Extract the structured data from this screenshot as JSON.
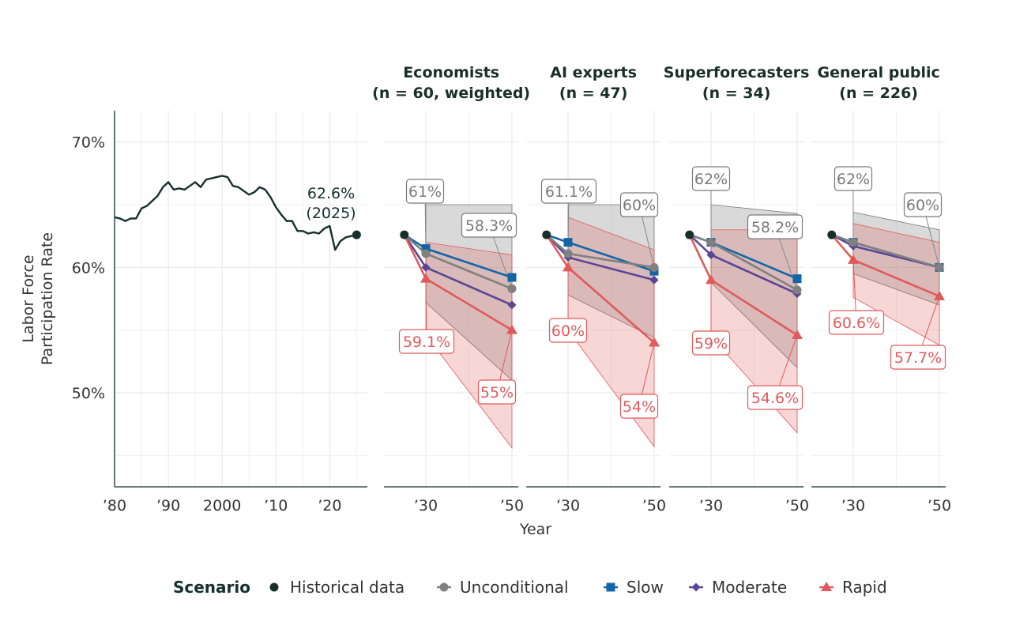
{
  "chart_data": [
    {
      "type": "line",
      "panel": "historical",
      "title": "",
      "ylabel": [
        "Labor Force",
        "Participation Rate"
      ],
      "xlim": [
        1980,
        2027
      ],
      "ylim": [
        42.5,
        72.5
      ],
      "x_ticks": [
        {
          "value": 1980,
          "label": "’80"
        },
        {
          "value": 1990,
          "label": "’90"
        },
        {
          "value": 2000,
          "label": "2000"
        },
        {
          "value": 2010,
          "label": "’10"
        },
        {
          "value": 2020,
          "label": "’20"
        }
      ],
      "y_ticks": [
        {
          "value": 50,
          "label": "50%"
        },
        {
          "value": 60,
          "label": "60%"
        },
        {
          "value": 70,
          "label": "70%"
        }
      ],
      "grid": true,
      "series": [
        {
          "name": "Historical data",
          "x": [
            1980,
            1981,
            1982,
            1983,
            1984,
            1985,
            1986,
            1987,
            1988,
            1989,
            1990,
            1991,
            1992,
            1993,
            1994,
            1995,
            1996,
            1997,
            1998,
            1999,
            2000,
            2001,
            2002,
            2003,
            2004,
            2005,
            2006,
            2007,
            2008,
            2009,
            2010,
            2011,
            2012,
            2013,
            2014,
            2015,
            2016,
            2017,
            2018,
            2019,
            2020,
            2021,
            2022,
            2023,
            2024,
            2025
          ],
          "y": [
            64.0,
            63.9,
            63.7,
            63.9,
            63.9,
            64.7,
            64.9,
            65.3,
            65.7,
            66.4,
            66.8,
            66.2,
            66.3,
            66.2,
            66.5,
            66.8,
            66.4,
            67.0,
            67.1,
            67.2,
            67.3,
            67.2,
            66.5,
            66.4,
            66.1,
            65.8,
            66.0,
            66.4,
            66.2,
            65.6,
            64.8,
            64.2,
            63.7,
            63.7,
            62.9,
            62.9,
            62.7,
            62.8,
            62.7,
            63.1,
            63.3,
            61.4,
            62.1,
            62.4,
            62.5,
            62.6
          ]
        }
      ],
      "annotation": {
        "value_label": "62.6%",
        "year_label": "(2025)"
      }
    },
    {
      "type": "line",
      "panel": "forecast",
      "xlabel": "Year",
      "xlim": [
        2020.3,
        2051.5
      ],
      "ylim": [
        42.5,
        72.5
      ],
      "x_ticks": [
        {
          "value": 2030,
          "label": "’30"
        },
        {
          "value": 2050,
          "label": "’50"
        }
      ],
      "start": {
        "year": 2025,
        "value": 62.6
      },
      "facets": [
        {
          "title": [
            "Economists",
            "(n = 60, weighted)"
          ],
          "series": {
            "Slow": [
              61.5,
              59.2
            ],
            "Unconditional": [
              61.1,
              58.3
            ],
            "Moderate": [
              60.0,
              57.0
            ],
            "Rapid": [
              59.1,
              55.0
            ]
          },
          "bands": {
            "Unconditional": {
              "upper": [
                65.0,
                65.0
              ],
              "lower": [
                57.2,
                51.0
              ]
            },
            "Rapid": {
              "upper": [
                62.0,
                61.0
              ],
              "lower": [
                54.6,
                45.6
              ]
            }
          },
          "labels": [
            "61%",
            "58.3%",
            "59.1%",
            "55%"
          ]
        },
        {
          "title": [
            "AI experts",
            "(n = 47)"
          ],
          "series": {
            "Slow": [
              62.0,
              59.7
            ],
            "Unconditional": [
              61.1,
              60.0
            ],
            "Moderate": [
              60.8,
              59.0
            ],
            "Rapid": [
              60.0,
              54.0
            ]
          },
          "bands": {
            "Unconditional": {
              "upper": [
                65.0,
                65.0
              ],
              "lower": [
                57.8,
                54.4
              ]
            },
            "Rapid": {
              "upper": [
                64.0,
                61.4
              ],
              "lower": [
                55.0,
                45.7
              ]
            }
          },
          "labels": [
            "61.1%",
            "60%",
            "60%",
            "54%"
          ]
        },
        {
          "title": [
            "Superforecasters",
            "(n = 34)"
          ],
          "series": {
            "Slow": [
              62.0,
              59.1
            ],
            "Unconditional": [
              62.0,
              58.2
            ],
            "Moderate": [
              61.0,
              57.9
            ],
            "Rapid": [
              59.0,
              54.6
            ]
          },
          "bands": {
            "Unconditional": {
              "upper": [
                65.0,
                64.3
              ],
              "lower": [
                58.8,
                52.0
              ]
            },
            "Rapid": {
              "upper": [
                63.0,
                63.0
              ],
              "lower": [
                54.5,
                46.8
              ]
            }
          },
          "labels": [
            "62%",
            "58.2%",
            "59%",
            "54.6%"
          ]
        },
        {
          "title": [
            "General public",
            "(n = 226)"
          ],
          "series": {
            "Slow": [
              62.0,
              60.0
            ],
            "Unconditional": [
              62.0,
              60.0
            ],
            "Moderate": [
              61.7,
              60.0
            ],
            "Rapid": [
              60.6,
              57.7
            ]
          },
          "bands": {
            "Unconditional": {
              "upper": [
                64.4,
                63.0
              ],
              "lower": [
                59.5,
                57.0
              ]
            },
            "Rapid": {
              "upper": [
                63.5,
                62.0
              ],
              "lower": [
                57.6,
                53.8
              ]
            }
          },
          "labels": [
            "62%",
            "60%",
            "60.6%",
            "57.7%"
          ]
        }
      ]
    }
  ],
  "legend": {
    "title": "Scenario",
    "placement": "bottom",
    "items": [
      {
        "name": "Historical data",
        "shape": "circle",
        "color": "#16302a"
      },
      {
        "name": "Unconditional",
        "shape": "circle",
        "color": "#808080"
      },
      {
        "name": "Slow",
        "shape": "square",
        "color": "#1266a8"
      },
      {
        "name": "Moderate",
        "shape": "diamond",
        "color": "#5b4596"
      },
      {
        "name": "Rapid",
        "shape": "triangle",
        "color": "#e05a5c"
      }
    ]
  }
}
